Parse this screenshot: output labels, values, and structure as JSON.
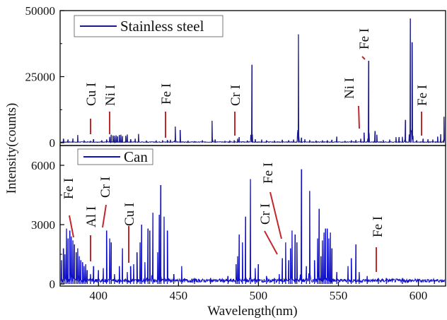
{
  "chart_data": {
    "type": "line",
    "xlabel": "Wavelength(nm)",
    "ylabel": "Intensity(counts)",
    "xlim": [
      376,
      617
    ],
    "xticks": [
      400,
      450,
      500,
      550,
      600
    ],
    "xtick_labels": [
      "400",
      "450",
      "500",
      "550",
      "600"
    ],
    "grid": false,
    "panels": [
      {
        "name": "Stainless steel",
        "legend": "Stainless steel",
        "legend_placement": "top-left",
        "color": "#1a1a8c",
        "ylim": [
          0,
          50000
        ],
        "yticks": [
          0,
          25000,
          50000
        ],
        "ytick_labels": [
          "0",
          "25000",
          "50000"
        ],
        "peaks": [
          [
            378,
            1500
          ],
          [
            381,
            1200
          ],
          [
            384,
            1600
          ],
          [
            387,
            2900
          ],
          [
            391,
            900
          ],
          [
            395,
            600
          ],
          [
            397,
            1300
          ],
          [
            402,
            900
          ],
          [
            405,
            1200
          ],
          [
            407,
            2200
          ],
          [
            408,
            3000
          ],
          [
            409,
            2700
          ],
          [
            410,
            2600
          ],
          [
            411,
            2800
          ],
          [
            412,
            2400
          ],
          [
            413,
            2900
          ],
          [
            414,
            3000
          ],
          [
            415,
            2500
          ],
          [
            417,
            2600
          ],
          [
            418,
            3100
          ],
          [
            420,
            1300
          ],
          [
            423,
            1500
          ],
          [
            425,
            3300
          ],
          [
            430,
            800
          ],
          [
            436,
            700
          ],
          [
            440,
            900
          ],
          [
            443,
            1000
          ],
          [
            445,
            1100
          ],
          [
            448,
            6100
          ],
          [
            451,
            4800
          ],
          [
            456,
            600
          ],
          [
            460,
            500
          ],
          [
            465,
            900
          ],
          [
            471,
            8300
          ],
          [
            473,
            1200
          ],
          [
            479,
            600
          ],
          [
            482,
            700
          ],
          [
            485,
            900
          ],
          [
            487,
            1500
          ],
          [
            488,
            2100
          ],
          [
            493,
            800
          ],
          [
            496,
            29500
          ],
          [
            498,
            1300
          ],
          [
            502,
            1200
          ],
          [
            505,
            900
          ],
          [
            510,
            800
          ],
          [
            515,
            1100
          ],
          [
            519,
            900
          ],
          [
            522,
            1200
          ],
          [
            525,
            41000
          ],
          [
            527,
            1900
          ],
          [
            529,
            1300
          ],
          [
            532,
            1000
          ],
          [
            536,
            800
          ],
          [
            540,
            900
          ],
          [
            543,
            900
          ],
          [
            546,
            1100
          ],
          [
            549,
            2300
          ],
          [
            554,
            600
          ],
          [
            558,
            900
          ],
          [
            561,
            1000
          ],
          [
            564,
            1500
          ],
          [
            566,
            3800
          ],
          [
            569,
            31000
          ],
          [
            573,
            4400
          ],
          [
            574,
            3000
          ],
          [
            578,
            1000
          ],
          [
            582,
            1200
          ],
          [
            586,
            2100
          ],
          [
            588,
            2100
          ],
          [
            590,
            2200
          ],
          [
            592,
            8600
          ],
          [
            595,
            47000
          ],
          [
            596,
            38000
          ],
          [
            599,
            900
          ],
          [
            603,
            1500
          ],
          [
            606,
            1300
          ],
          [
            609,
            1200
          ],
          [
            612,
            2300
          ],
          [
            614,
            3200
          ],
          [
            616,
            9800
          ]
        ],
        "baseline": 300
      },
      {
        "name": "Can",
        "legend": "Can",
        "legend_placement": "top-left",
        "color": "#1010c8",
        "ylim": [
          0,
          7000
        ],
        "yticks": [
          0,
          3000,
          6000
        ],
        "ytick_labels": [
          "0",
          "3000",
          "6000"
        ],
        "peaks": [
          [
            377,
            1200
          ],
          [
            378,
            1800
          ],
          [
            379,
            1500
          ],
          [
            380,
            2800
          ],
          [
            381,
            2300
          ],
          [
            382,
            2700
          ],
          [
            383,
            2400
          ],
          [
            384,
            2200
          ],
          [
            385,
            2000
          ],
          [
            386,
            1600
          ],
          [
            387,
            1800
          ],
          [
            388,
            1400
          ],
          [
            389,
            1200
          ],
          [
            390,
            1100
          ],
          [
            391,
            900
          ],
          [
            392,
            1000
          ],
          [
            393,
            700
          ],
          [
            395,
            500
          ],
          [
            397,
            900
          ],
          [
            400,
            700
          ],
          [
            403,
            800
          ],
          [
            405,
            2700
          ],
          [
            407,
            2300
          ],
          [
            408,
            2100
          ],
          [
            410,
            500
          ],
          [
            413,
            900
          ],
          [
            415,
            1800
          ],
          [
            418,
            600
          ],
          [
            420,
            900
          ],
          [
            422,
            1000
          ],
          [
            424,
            1600
          ],
          [
            426,
            2100
          ],
          [
            427,
            3000
          ],
          [
            429,
            1100
          ],
          [
            431,
            2800
          ],
          [
            432,
            2700
          ],
          [
            434,
            3600
          ],
          [
            437,
            1600
          ],
          [
            438,
            3500
          ],
          [
            439,
            5000
          ],
          [
            441,
            3400
          ],
          [
            443,
            2700
          ],
          [
            447,
            500
          ],
          [
            452,
            900
          ],
          [
            460,
            300
          ],
          [
            470,
            300
          ],
          [
            481,
            400
          ],
          [
            486,
            1000
          ],
          [
            487,
            1400
          ],
          [
            488,
            2500
          ],
          [
            490,
            2100
          ],
          [
            492,
            3400
          ],
          [
            495,
            5300
          ],
          [
            498,
            800
          ],
          [
            500,
            1000
          ],
          [
            505,
            400
          ],
          [
            510,
            300
          ],
          [
            513,
            500
          ],
          [
            515,
            1300
          ],
          [
            517,
            2100
          ],
          [
            519,
            1200
          ],
          [
            520,
            1800
          ],
          [
            521,
            2700
          ],
          [
            523,
            2500
          ],
          [
            524,
            2100
          ],
          [
            527,
            5800
          ],
          [
            530,
            900
          ],
          [
            532,
            4700
          ],
          [
            535,
            1200
          ],
          [
            537,
            2300
          ],
          [
            538,
            3800
          ],
          [
            539,
            1400
          ],
          [
            540,
            2200
          ],
          [
            541,
            2600
          ],
          [
            542,
            2800
          ],
          [
            543,
            2800
          ],
          [
            544,
            2300
          ],
          [
            545,
            2600
          ],
          [
            546,
            1800
          ],
          [
            549,
            600
          ],
          [
            556,
            900
          ],
          [
            558,
            1300
          ],
          [
            561,
            2000
          ],
          [
            563,
            600
          ],
          [
            568,
            400
          ],
          [
            575,
            300
          ],
          [
            580,
            300
          ],
          [
            590,
            300
          ],
          [
            600,
            200
          ],
          [
            610,
            200
          ]
        ],
        "baseline": 200
      }
    ],
    "annotations": [
      {
        "panel": 0,
        "text": "Cu I",
        "x": 397.5
      },
      {
        "panel": 0,
        "text": "Ni I",
        "x": 408
      },
      {
        "panel": 0,
        "text": "Fe I",
        "x": 443.5
      },
      {
        "panel": 0,
        "text": "Cr I",
        "x": 487.5
      },
      {
        "panel": 0,
        "text": "Ni I",
        "x": 565.5
      },
      {
        "panel": 0,
        "text": "Fe I",
        "x": 569.5
      },
      {
        "panel": 0,
        "text": "Fe I",
        "x": 604.5
      },
      {
        "panel": 1,
        "text": "Fe I",
        "x": 382
      },
      {
        "panel": 1,
        "text": "Al I",
        "x": 397
      },
      {
        "panel": 1,
        "text": "Cr I",
        "x": 405
      },
      {
        "panel": 1,
        "text": "Cu I",
        "x": 420.5
      },
      {
        "panel": 1,
        "text": "Cr I",
        "x": 514
      },
      {
        "panel": 1,
        "text": "Fe I",
        "x": 516.5
      },
      {
        "panel": 1,
        "text": "Fe I",
        "x": 575
      }
    ],
    "annotation_color": "#c0282d"
  }
}
